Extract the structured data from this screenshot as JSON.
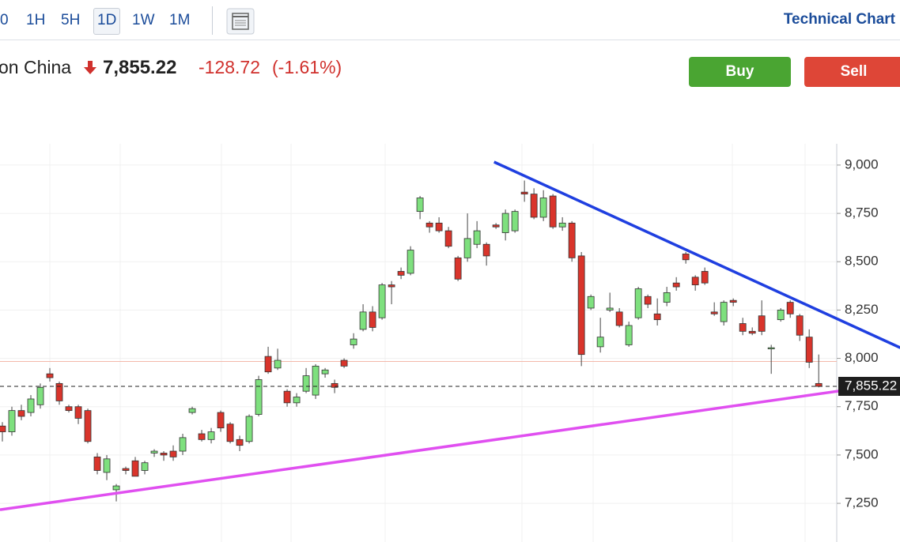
{
  "toolbar": {
    "intervals": [
      "0",
      "1H",
      "5H",
      "1D",
      "1W",
      "1M"
    ],
    "selected": "1D",
    "link": "Technical Chart"
  },
  "quote": {
    "name": "on China",
    "price": "7,855.22",
    "change": "-128.72",
    "change_pct": "(-1.61%)"
  },
  "buttons": {
    "buy": "Buy",
    "sell": "Sell"
  },
  "chart_data": {
    "type": "candlestick",
    "up_color": "#7ee07e",
    "down_color": "#d9342b",
    "open": [
      7650,
      7620,
      7730,
      7720,
      7760,
      7920,
      7870,
      7750,
      7750,
      7730,
      7490,
      7410,
      7320,
      7430,
      7470,
      7420,
      7510,
      7510,
      7520,
      7520,
      7720,
      7610,
      7580,
      7720,
      7660,
      7580,
      7570,
      7710,
      8010,
      7950,
      7830,
      7770,
      7830,
      7810,
      7920,
      7870,
      7990,
      8070,
      8150,
      8240,
      8210,
      8380,
      8450,
      8440,
      8760,
      8700,
      8700,
      8660,
      8520,
      8520,
      8590,
      8590,
      8690,
      8650,
      8660,
      8860,
      8850,
      8730,
      8840,
      8680,
      8700,
      8530,
      8260,
      8060,
      8250,
      8240,
      8070,
      8210,
      8320,
      8230,
      8290,
      8390,
      8540,
      8420,
      8450,
      8240,
      8190,
      8300,
      8180,
      8140,
      8220,
      8050,
      8200,
      8290,
      8220,
      8110,
      7870
    ],
    "high": [
      7670,
      7750,
      7760,
      7810,
      7870,
      7950,
      7880,
      7760,
      7760,
      7740,
      7510,
      7500,
      7350,
      7440,
      7490,
      7470,
      7530,
      7520,
      7550,
      7610,
      7750,
      7630,
      7640,
      7730,
      7670,
      7600,
      7710,
      7910,
      8060,
      8050,
      7840,
      7820,
      7950,
      7970,
      7950,
      7890,
      8000,
      8130,
      8280,
      8270,
      8390,
      8400,
      8470,
      8580,
      8840,
      8710,
      8730,
      8680,
      8530,
      8750,
      8710,
      8600,
      8700,
      8770,
      8770,
      8920,
      8880,
      8870,
      8850,
      8730,
      8710,
      8550,
      8330,
      8210,
      8340,
      8260,
      8190,
      8370,
      8330,
      8310,
      8370,
      8420,
      8550,
      8430,
      8470,
      8290,
      8300,
      8310,
      8210,
      8160,
      8300,
      8070,
      8260,
      8300,
      8230,
      8150,
      8020
    ],
    "low": [
      7570,
      7600,
      7680,
      7700,
      7740,
      7880,
      7760,
      7720,
      7660,
      7560,
      7400,
      7370,
      7260,
      7400,
      7390,
      7400,
      7490,
      7470,
      7470,
      7500,
      7710,
      7570,
      7560,
      7620,
      7560,
      7520,
      7560,
      7700,
      7920,
      7940,
      7750,
      7750,
      7820,
      7790,
      7900,
      7820,
      7950,
      8050,
      8140,
      8140,
      8200,
      8280,
      8410,
      8430,
      8720,
      8650,
      8650,
      8570,
      8400,
      8500,
      8570,
      8480,
      8670,
      8610,
      8650,
      8810,
      8720,
      8710,
      8670,
      8660,
      8500,
      7960,
      8250,
      8030,
      8240,
      8160,
      8060,
      8200,
      8260,
      8170,
      8270,
      8350,
      8490,
      8350,
      8380,
      8220,
      8170,
      8270,
      8120,
      8120,
      8120,
      7920,
      8190,
      8210,
      8090,
      7950,
      7850
    ],
    "close": [
      7620,
      7730,
      7700,
      7790,
      7850,
      7900,
      7780,
      7730,
      7690,
      7570,
      7420,
      7480,
      7340,
      7420,
      7390,
      7460,
      7520,
      7500,
      7490,
      7590,
      7740,
      7580,
      7620,
      7640,
      7570,
      7550,
      7700,
      7890,
      7930,
      7990,
      7770,
      7800,
      7910,
      7960,
      7940,
      7850,
      7960,
      8100,
      8240,
      8160,
      8380,
      8370,
      8430,
      8560,
      8830,
      8680,
      8660,
      8580,
      8410,
      8620,
      8660,
      8530,
      8680,
      8750,
      8760,
      8850,
      8730,
      8830,
      8680,
      8700,
      8520,
      8020,
      8320,
      8110,
      8260,
      8170,
      8170,
      8360,
      8280,
      8200,
      8340,
      8370,
      8510,
      8380,
      8390,
      8230,
      8290,
      8290,
      8140,
      8130,
      8140,
      8055,
      8250,
      8230,
      8120,
      7980,
      7855.22
    ],
    "xlim": [
      -0.25,
      87.9
    ],
    "ylim": [
      7050,
      9110
    ],
    "yticks": [
      {
        "value": 7250,
        "label": "7,250"
      },
      {
        "value": 7500,
        "label": "7,500"
      },
      {
        "value": 7750,
        "label": "7,750"
      },
      {
        "value": 8000,
        "label": "8,000"
      },
      {
        "value": 8250,
        "label": "8,250"
      },
      {
        "value": 8500,
        "label": "8,500"
      },
      {
        "value": 8750,
        "label": "8,750"
      },
      {
        "value": 9000,
        "label": "9,000"
      }
    ],
    "grid": true,
    "previous_close": 7983.94,
    "last_price": {
      "value": 7855.22,
      "label": "7,855.22"
    },
    "trendlines": [
      {
        "color": "#1f3fe0",
        "x": [
          51.8,
          94.6
        ],
        "y": [
          9016,
          8055
        ]
      },
      {
        "color": "#e04ff0",
        "x": [
          -0.25,
          94.6
        ],
        "y": [
          7217,
          7876
        ]
      }
    ]
  }
}
